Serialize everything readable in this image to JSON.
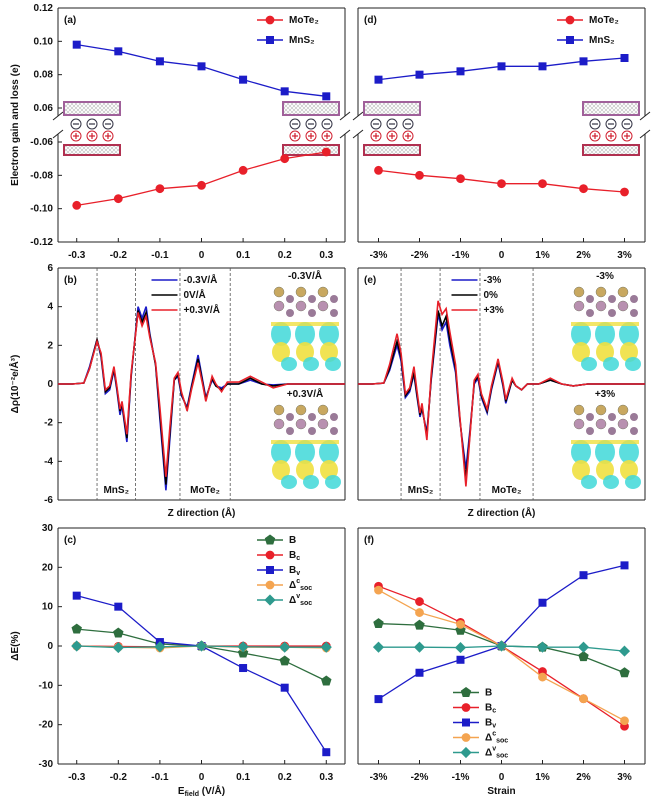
{
  "chart_data": [
    {
      "type": "line",
      "label": "(a)",
      "ylabel": "Electron gain and loss (e)",
      "x": [
        -0.3,
        -0.2,
        -0.1,
        0,
        0.1,
        0.2,
        0.3
      ],
      "xlim": [
        -0.345,
        0.345
      ],
      "xticks": [
        -0.3,
        -0.2,
        -0.1,
        0,
        0.1,
        0.2,
        0.3
      ],
      "ylim": [
        -0.12,
        0.12
      ],
      "ybreak": [
        -0.06,
        0.06
      ],
      "yticks": [
        0.12,
        {
          "value": 0.1,
          "label": "0.10"
        },
        0.08,
        0.06,
        -0.06,
        -0.08,
        {
          "value": -0.1,
          "label": "-0.10"
        },
        -0.12
      ],
      "legend": "upper right",
      "series": [
        {
          "name": "MoTe₂",
          "color": "#e8202a",
          "marker": "circle",
          "values": [
            -0.098,
            -0.094,
            -0.088,
            -0.086,
            -0.077,
            -0.07,
            -0.066
          ]
        },
        {
          "name": "MnS₂",
          "color": "#1c1cc8",
          "marker": "square",
          "values": [
            0.098,
            0.094,
            0.088,
            0.085,
            0.077,
            0.07,
            0.067
          ]
        }
      ]
    },
    {
      "type": "line",
      "label": "(b)",
      "ylabel": "Δρ(10⁻²e/Å³)",
      "xlabel": "Z direction (Å)",
      "x": [
        0,
        5,
        9,
        11,
        13.6,
        15,
        16.5,
        18,
        19.5,
        20.5,
        21.6,
        22.3,
        24,
        25.5,
        27.9,
        29.3,
        30.7,
        32,
        34,
        35.5,
        37.6,
        39,
        40.5,
        41.8,
        43,
        45,
        46.5,
        48.8,
        50.5,
        51.5,
        53.7,
        55,
        57,
        59,
        63,
        67,
        71,
        75,
        80,
        100
      ],
      "xlim": [
        0,
        100
      ],
      "ylim": [
        -6,
        6
      ],
      "yticks": [
        -6,
        -4,
        -2,
        0,
        2,
        4,
        6
      ],
      "dividers": [
        13.6,
        27,
        42.5,
        60
      ],
      "regions": [
        "MnS₂",
        "MoTe₂"
      ],
      "insets": [
        "-0.3V/Å",
        "+0.3V/Å"
      ],
      "legend": "upper center",
      "series": [
        {
          "name": "-0.3V/Å",
          "color": "#1c1cc8",
          "values": [
            0,
            0,
            0.05,
            0.9,
            2.3,
            1.4,
            -0.5,
            -0.3,
            0.7,
            -0.3,
            -1.6,
            -1.1,
            -3.0,
            0.4,
            4.0,
            3.4,
            4.0,
            2.6,
            1.0,
            -1.8,
            -5.5,
            -2.8,
            0.2,
            0.4,
            -0.6,
            -1.2,
            -0.1,
            1.5,
            0.1,
            -0.7,
            0.2,
            -0.1,
            -0.2,
            0,
            0,
            0.2,
            0,
            -0.05,
            0,
            0
          ]
        },
        {
          "name": "0V/Å",
          "color": "#000000",
          "values": [
            0,
            0,
            0.05,
            0.8,
            2.3,
            1.5,
            -0.4,
            -0.2,
            0.8,
            -0.2,
            -1.4,
            -1.0,
            -2.8,
            0.5,
            3.8,
            3.2,
            3.7,
            2.5,
            1.0,
            -1.5,
            -5.2,
            -2.5,
            0.2,
            0.5,
            -0.5,
            -1.3,
            -0.2,
            1.3,
            0,
            -0.8,
            0.3,
            -0.1,
            -0.3,
            0,
            0,
            0.3,
            0,
            -0.1,
            0,
            0
          ]
        },
        {
          "name": "+0.3V/Å",
          "color": "#e8202a",
          "values": [
            0,
            0,
            0.05,
            0.8,
            2.2,
            1.6,
            -0.3,
            -0.1,
            0.9,
            -0.1,
            -1.3,
            -0.9,
            -2.6,
            0.6,
            3.7,
            3.0,
            3.5,
            2.4,
            1.1,
            -1.2,
            -4.8,
            -2.2,
            0.3,
            0.6,
            -0.4,
            -1.4,
            -0.3,
            1.1,
            -0.1,
            -0.9,
            0.4,
            0,
            -0.4,
            0.1,
            0.1,
            0.4,
            0.1,
            -0.2,
            0,
            0
          ]
        }
      ]
    },
    {
      "type": "line",
      "label": "(c)",
      "ylabel": "ΔE(%)",
      "xlabel": "E_{field} (V/Å)",
      "x": [
        -0.3,
        -0.2,
        -0.1,
        0,
        0.1,
        0.2,
        0.3
      ],
      "xlim": [
        -0.345,
        0.345
      ],
      "xticks": [
        -0.3,
        -0.2,
        -0.1,
        0,
        0.1,
        0.2,
        0.3
      ],
      "ylim": [
        -30,
        30
      ],
      "yticks": [
        -30,
        -20,
        -10,
        0,
        10,
        20,
        30
      ],
      "legend": "upper right",
      "series": [
        {
          "name": "B",
          "color": "#2e6e3e",
          "marker": "pentagon",
          "values": [
            4.3,
            3.3,
            0.5,
            0,
            -1.8,
            -3.8,
            -8.9
          ]
        },
        {
          "name": "B_{c}",
          "color": "#e8202a",
          "marker": "circle",
          "values": [
            0,
            -0.1,
            -0.2,
            0,
            0,
            0,
            0
          ]
        },
        {
          "name": "B_{v}",
          "color": "#1c1cc8",
          "marker": "square",
          "values": [
            12.8,
            10.0,
            1.0,
            0,
            -5.6,
            -10.6,
            -27
          ]
        },
        {
          "name": "Δ^{c}_{soc}",
          "color": "#f4a450",
          "marker": "circle",
          "values": [
            0,
            -0.3,
            -0.5,
            0,
            -0.3,
            -0.3,
            -0.5
          ]
        },
        {
          "name": "Δ^{v}_{soc}",
          "color": "#2e9a8e",
          "marker": "diamond",
          "values": [
            0,
            -0.4,
            -0.2,
            0,
            -0.2,
            -0.3,
            -0.3
          ]
        }
      ]
    },
    {
      "type": "line",
      "label": "(d)",
      "categories": [
        "-3%",
        "-2%",
        "-1%",
        "0",
        "1%",
        "2%",
        "3%"
      ],
      "ylim": [
        -0.12,
        0.12
      ],
      "ybreak": [
        -0.06,
        0.06
      ],
      "legend": "upper right",
      "series": [
        {
          "name": "MoTe₂",
          "color": "#e8202a",
          "marker": "circle",
          "values": [
            -0.077,
            -0.08,
            -0.082,
            -0.085,
            -0.085,
            -0.088,
            -0.09
          ]
        },
        {
          "name": "MnS₂",
          "color": "#1c1cc8",
          "marker": "square",
          "values": [
            0.077,
            0.08,
            0.082,
            0.085,
            0.085,
            0.088,
            0.09
          ]
        }
      ]
    },
    {
      "type": "line",
      "label": "(e)",
      "xlabel": "Z direction (Å)",
      "x": [
        0,
        5,
        9,
        11,
        13.6,
        15,
        16.5,
        18,
        19.5,
        20.5,
        21.6,
        22.3,
        24,
        25.5,
        27.9,
        29.3,
        30.7,
        32,
        34,
        35.5,
        37.6,
        39,
        40.5,
        41.8,
        43,
        45,
        46.5,
        48.8,
        50.5,
        51.5,
        53.7,
        55,
        57,
        59,
        63,
        67,
        71,
        75,
        80,
        100
      ],
      "xlim": [
        0,
        100
      ],
      "ylim": [
        -6,
        6
      ],
      "dividers": [
        15,
        28.6,
        42.5,
        61
      ],
      "regions": [
        "MnS₂",
        "MoTe₂"
      ],
      "insets": [
        "-3%",
        "+3%"
      ],
      "legend": "upper center",
      "series": [
        {
          "name": "-3%",
          "color": "#1c1cc8",
          "values": [
            0,
            0,
            0.05,
            0.7,
            2.0,
            1.2,
            -0.7,
            -0.4,
            0.5,
            -0.6,
            -1.7,
            -1.3,
            -2.5,
            0.2,
            3.6,
            2.8,
            3.2,
            2.0,
            0.6,
            -1.9,
            -4.4,
            -2.4,
            0,
            0.3,
            -0.7,
            -1.5,
            -0.3,
            1.1,
            -0.1,
            -1.0,
            0.2,
            -0.1,
            -0.3,
            0,
            0,
            0.2,
            0,
            -0.1,
            0,
            0
          ]
        },
        {
          "name": "0%",
          "color": "#000000",
          "values": [
            0,
            0,
            0.05,
            0.8,
            2.2,
            1.4,
            -0.6,
            -0.3,
            0.6,
            -0.5,
            -1.6,
            -1.2,
            -2.7,
            0.3,
            3.8,
            3.0,
            3.5,
            2.3,
            0.8,
            -1.8,
            -4.9,
            -2.6,
            0.1,
            0.4,
            -0.6,
            -1.4,
            -0.2,
            1.2,
            0,
            -0.9,
            0.2,
            -0.1,
            -0.3,
            0,
            0,
            0.2,
            0,
            -0.1,
            0,
            0
          ]
        },
        {
          "name": "+3%",
          "color": "#e8202a",
          "values": [
            0,
            0,
            0.05,
            1.0,
            2.6,
            1.6,
            -0.5,
            -0.2,
            0.9,
            -0.3,
            -1.5,
            -1.0,
            -2.9,
            0.5,
            4.3,
            3.6,
            3.9,
            2.7,
            1.0,
            -1.7,
            -5.3,
            -2.7,
            0.2,
            0.5,
            -0.5,
            -1.3,
            -0.1,
            1.3,
            0.1,
            -0.8,
            0.3,
            -0.1,
            -0.3,
            0,
            0,
            0.3,
            0,
            -0.1,
            0,
            0
          ]
        }
      ]
    },
    {
      "type": "line",
      "label": "(f)",
      "xlabel": "Strain",
      "categories": [
        "-3%",
        "-2%",
        "-1%",
        "0",
        "1%",
        "2%",
        "3%"
      ],
      "ylim": [
        -30,
        30
      ],
      "legend": "lower left",
      "series": [
        {
          "name": "B",
          "color": "#2e6e3e",
          "marker": "pentagon",
          "values": [
            5.7,
            5.3,
            4.0,
            0,
            -0.3,
            -2.7,
            -6.8
          ]
        },
        {
          "name": "B_{c}",
          "color": "#e8202a",
          "marker": "circle",
          "values": [
            15.2,
            11.3,
            6.0,
            0,
            -6.5,
            -13.4,
            -20.4
          ]
        },
        {
          "name": "B_{v}",
          "color": "#1c1cc8",
          "marker": "square",
          "values": [
            -13.5,
            -6.8,
            -3.5,
            0,
            11.0,
            18.0,
            20.5
          ]
        },
        {
          "name": "Δ^{c}_{soc}",
          "color": "#f4a450",
          "marker": "circle",
          "values": [
            14.2,
            8.5,
            5.5,
            0,
            -7.9,
            -13.4,
            -19
          ]
        },
        {
          "name": "Δ^{v}_{soc}",
          "color": "#2e9a8e",
          "marker": "diamond",
          "values": [
            -0.3,
            -0.3,
            -0.4,
            0,
            -0.3,
            -0.3,
            -1.3
          ]
        }
      ]
    }
  ]
}
